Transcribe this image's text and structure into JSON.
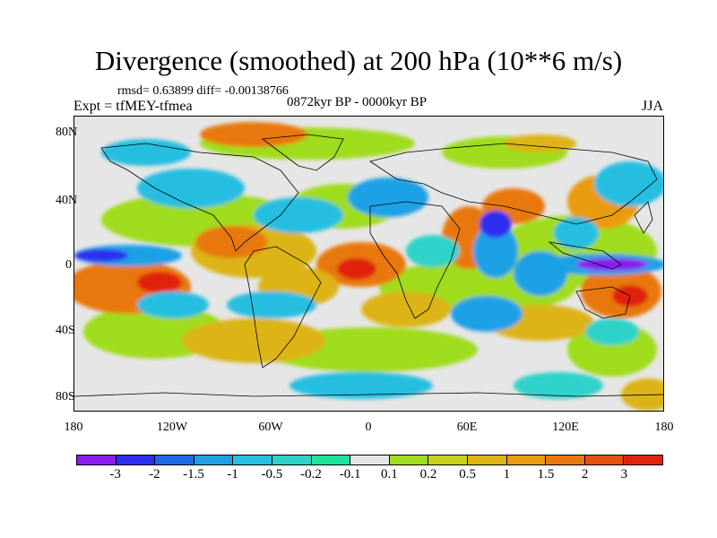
{
  "title": "Divergence (smoothed) at 200 hPa (10**6 m/s)",
  "stats": "rmsd= 0.63899  diff= -0.00138766",
  "experiment": "Expt = tfMEY-tfmea",
  "period": "0872kyr BP - 0000kyr BP",
  "season": "JJA",
  "lat_labels": [
    "80N",
    "40N",
    "0",
    "40S",
    "80S"
  ],
  "lon_labels": [
    "180",
    "120W",
    "60W",
    "0",
    "60E",
    "120E",
    "180"
  ],
  "colorbar": {
    "colors": [
      "#8a1df0",
      "#2e2ef0",
      "#1e69e8",
      "#1ea0e6",
      "#28bee0",
      "#2ed2c8",
      "#1ee39b",
      "#e6e6e6",
      "#9fdc1e",
      "#c8d21a",
      "#dcb414",
      "#e89b0f",
      "#e8780f",
      "#e6500f",
      "#e0230f"
    ],
    "labels": [
      "-3",
      "-2",
      "-1.5",
      "-1",
      "-0.5",
      "-0.2",
      "-0.1",
      "0.1",
      "0.2",
      "0.5",
      "1",
      "1.5",
      "2",
      "3"
    ]
  }
}
